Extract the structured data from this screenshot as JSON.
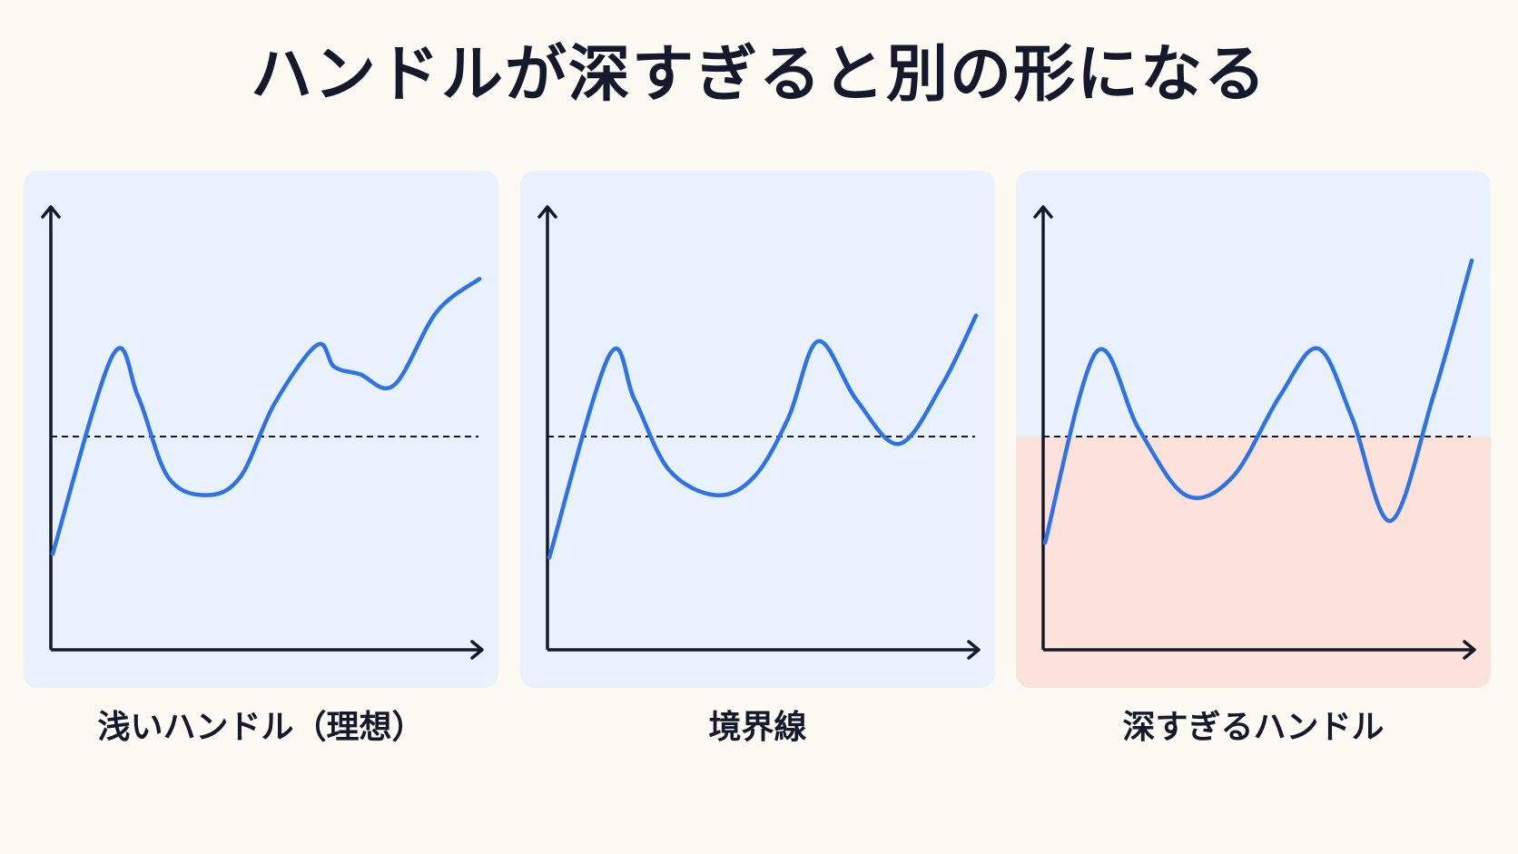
{
  "title": "ハンドルが深すぎると別の形になる",
  "colors": {
    "curve": "#2d72e8",
    "axis": "#141a2b",
    "panel_bg": "#e8f1fc",
    "danger_zone": "#fde2dc"
  },
  "panels": [
    {
      "caption": "浅いハンドル（理想）",
      "highlight_below_line": false,
      "points": [
        [
          0,
          0.18
        ],
        [
          0.14,
          0.72
        ],
        [
          0.2,
          0.61
        ],
        [
          0.27,
          0.39
        ],
        [
          0.36,
          0.34
        ],
        [
          0.44,
          0.39
        ],
        [
          0.52,
          0.59
        ],
        [
          0.62,
          0.75
        ],
        [
          0.66,
          0.69
        ],
        [
          0.72,
          0.67
        ],
        [
          0.8,
          0.64
        ],
        [
          0.9,
          0.84
        ],
        [
          1,
          0.93
        ]
      ]
    },
    {
      "caption": "境界線",
      "highlight_below_line": false,
      "points": [
        [
          0,
          0.17
        ],
        [
          0.14,
          0.72
        ],
        [
          0.2,
          0.6
        ],
        [
          0.28,
          0.41
        ],
        [
          0.39,
          0.34
        ],
        [
          0.48,
          0.39
        ],
        [
          0.56,
          0.55
        ],
        [
          0.63,
          0.76
        ],
        [
          0.72,
          0.6
        ],
        [
          0.82,
          0.48
        ],
        [
          0.92,
          0.64
        ],
        [
          1,
          0.83
        ]
      ]
    },
    {
      "caption": "深すぎるハンドル",
      "highlight_below_line": true,
      "points": [
        [
          0,
          0.21
        ],
        [
          0.12,
          0.73
        ],
        [
          0.22,
          0.52
        ],
        [
          0.33,
          0.34
        ],
        [
          0.44,
          0.39
        ],
        [
          0.55,
          0.61
        ],
        [
          0.64,
          0.74
        ],
        [
          0.72,
          0.55
        ],
        [
          0.81,
          0.27
        ],
        [
          0.91,
          0.61
        ],
        [
          1,
          0.98
        ]
      ]
    }
  ]
}
